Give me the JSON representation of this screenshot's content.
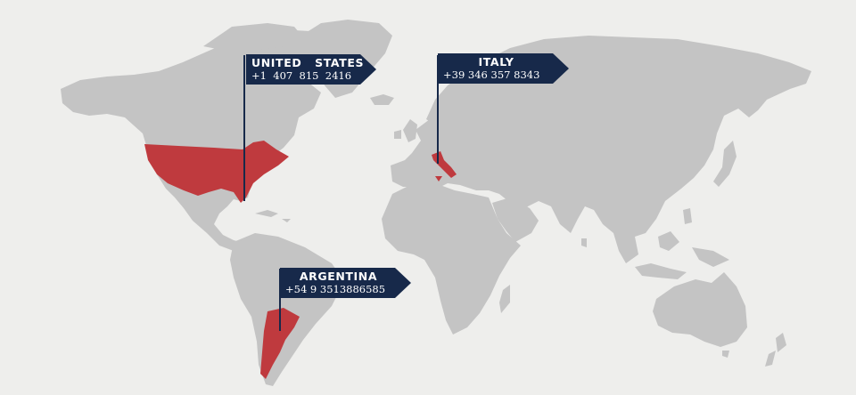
{
  "map": {
    "colors": {
      "background": "#eeeeec",
      "land": "#c4c4c4",
      "highlight": "#bf3a3e",
      "flag": "#17294a",
      "flag_text": "#ffffff"
    },
    "markers": [
      {
        "country": "UNITED   STATES",
        "phone": "+1  407  815  2416"
      },
      {
        "country": "ITALY",
        "phone": "+39 346 357 8343"
      },
      {
        "country": "ARGENTINA",
        "phone": "+54 9 3513886585"
      }
    ]
  }
}
